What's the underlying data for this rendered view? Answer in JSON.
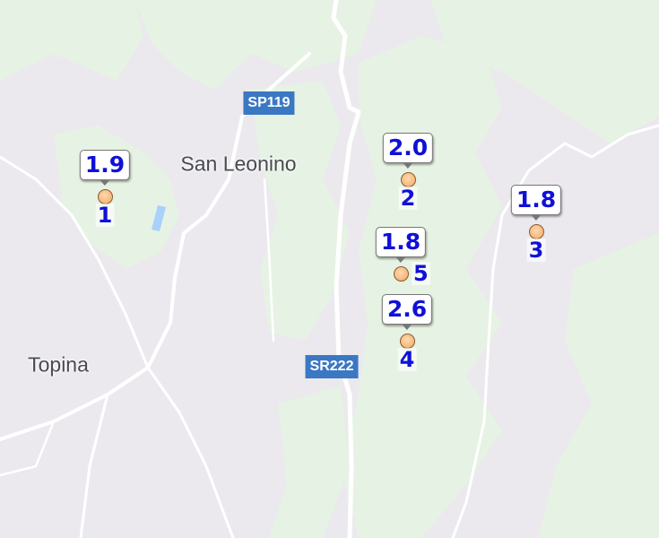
{
  "map": {
    "colors": {
      "land": "#ebe9ee",
      "forest": "#e6f2e3",
      "road": "#ffffff",
      "water": "#a8d1fb",
      "shield": "#3b78c4",
      "marker_text": "#1010d8"
    },
    "places": [
      {
        "name": "San Leonino"
      },
      {
        "name": "Topina"
      }
    ],
    "road_shields": [
      {
        "label": "SP119"
      },
      {
        "label": "SR222"
      }
    ],
    "markers": [
      {
        "id": "1",
        "value": "1.9"
      },
      {
        "id": "2",
        "value": "2.0"
      },
      {
        "id": "3",
        "value": "1.8"
      },
      {
        "id": "5",
        "value": "1.8"
      },
      {
        "id": "4",
        "value": "2.6"
      }
    ]
  }
}
